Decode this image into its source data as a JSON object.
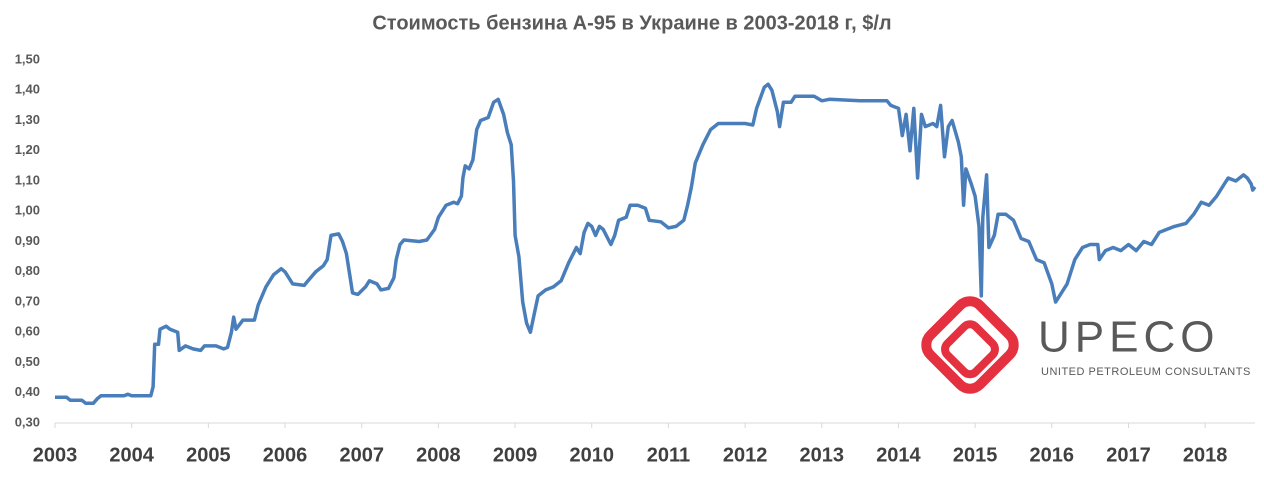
{
  "chart_data": {
    "type": "line",
    "title": "Стоимость бензина А-95 в Украине в 2003-2018 г, $/л",
    "color": "#4a7ebb",
    "x": [
      2003.0,
      2003.15,
      2003.2,
      2003.35,
      2003.4,
      2003.5,
      2003.55,
      2003.6,
      2003.9,
      2003.95,
      2004.0,
      2004.25,
      2004.28,
      2004.3,
      2004.35,
      2004.37,
      2004.45,
      2004.5,
      2004.6,
      2004.62,
      2004.7,
      2004.8,
      2004.9,
      2004.95,
      2005.1,
      2005.2,
      2005.25,
      2005.3,
      2005.33,
      2005.36,
      2005.42,
      2005.45,
      2005.6,
      2005.65,
      2005.75,
      2005.85,
      2005.95,
      2006.0,
      2006.1,
      2006.25,
      2006.3,
      2006.4,
      2006.5,
      2006.55,
      2006.6,
      2006.7,
      2006.75,
      2006.8,
      2006.85,
      2006.88,
      2006.95,
      2007.05,
      2007.1,
      2007.2,
      2007.25,
      2007.35,
      2007.42,
      2007.45,
      2007.5,
      2007.55,
      2007.75,
      2007.85,
      2007.95,
      2008.0,
      2008.1,
      2008.2,
      2008.25,
      2008.3,
      2008.32,
      2008.35,
      2008.4,
      2008.45,
      2008.5,
      2008.55,
      2008.65,
      2008.72,
      2008.78,
      2008.85,
      2008.9,
      2008.95,
      2008.98,
      2009.0,
      2009.05,
      2009.1,
      2009.15,
      2009.2,
      2009.25,
      2009.3,
      2009.4,
      2009.5,
      2009.6,
      2009.7,
      2009.8,
      2009.85,
      2009.9,
      2009.95,
      2010.0,
      2010.05,
      2010.1,
      2010.15,
      2010.25,
      2010.3,
      2010.35,
      2010.45,
      2010.5,
      2010.6,
      2010.7,
      2010.75,
      2010.9,
      2011.0,
      2011.1,
      2011.2,
      2011.25,
      2011.3,
      2011.35,
      2011.45,
      2011.55,
      2011.65,
      2011.8,
      2012.0,
      2012.1,
      2012.15,
      2012.25,
      2012.3,
      2012.35,
      2012.42,
      2012.45,
      2012.5,
      2012.6,
      2012.65,
      2012.9,
      2013.0,
      2013.1,
      2013.5,
      2013.85,
      2013.9,
      2014.0,
      2014.05,
      2014.1,
      2014.15,
      2014.2,
      2014.25,
      2014.3,
      2014.35,
      2014.45,
      2014.5,
      2014.55,
      2014.6,
      2014.65,
      2014.7,
      2014.78,
      2014.82,
      2014.85,
      2014.88,
      2014.95,
      2015.0,
      2015.05,
      2015.08,
      2015.1,
      2015.15,
      2015.18,
      2015.25,
      2015.3,
      2015.4,
      2015.5,
      2015.6,
      2015.7,
      2015.8,
      2015.9,
      2016.0,
      2016.05,
      2016.1,
      2016.2,
      2016.3,
      2016.4,
      2016.5,
      2016.6,
      2016.62,
      2016.7,
      2016.8,
      2016.9,
      2017.0,
      2017.1,
      2017.2,
      2017.3,
      2017.4,
      2017.5,
      2017.6,
      2017.75,
      2017.85,
      2017.95,
      2018.05,
      2018.15,
      2018.25,
      2018.3,
      2018.4,
      2018.5,
      2018.55,
      2018.6,
      2018.62,
      2018.65
    ],
    "values": [
      0.385,
      0.385,
      0.375,
      0.375,
      0.365,
      0.365,
      0.38,
      0.39,
      0.39,
      0.395,
      0.39,
      0.39,
      0.42,
      0.56,
      0.56,
      0.61,
      0.62,
      0.61,
      0.6,
      0.54,
      0.555,
      0.545,
      0.54,
      0.555,
      0.555,
      0.545,
      0.55,
      0.6,
      0.65,
      0.61,
      0.63,
      0.64,
      0.64,
      0.69,
      0.75,
      0.79,
      0.81,
      0.8,
      0.76,
      0.755,
      0.77,
      0.8,
      0.82,
      0.84,
      0.92,
      0.925,
      0.9,
      0.86,
      0.78,
      0.73,
      0.725,
      0.75,
      0.77,
      0.76,
      0.74,
      0.745,
      0.78,
      0.84,
      0.89,
      0.905,
      0.9,
      0.905,
      0.94,
      0.98,
      1.02,
      1.03,
      1.025,
      1.05,
      1.11,
      1.15,
      1.14,
      1.17,
      1.27,
      1.3,
      1.31,
      1.36,
      1.37,
      1.32,
      1.26,
      1.22,
      1.1,
      0.92,
      0.85,
      0.7,
      0.63,
      0.6,
      0.66,
      0.72,
      0.74,
      0.75,
      0.77,
      0.83,
      0.88,
      0.86,
      0.93,
      0.96,
      0.95,
      0.92,
      0.95,
      0.94,
      0.89,
      0.92,
      0.97,
      0.98,
      1.02,
      1.02,
      1.01,
      0.97,
      0.965,
      0.945,
      0.95,
      0.97,
      1.02,
      1.08,
      1.16,
      1.22,
      1.27,
      1.29,
      1.29,
      1.29,
      1.285,
      1.34,
      1.41,
      1.42,
      1.4,
      1.33,
      1.28,
      1.36,
      1.36,
      1.38,
      1.38,
      1.365,
      1.37,
      1.365,
      1.365,
      1.35,
      1.34,
      1.25,
      1.32,
      1.2,
      1.34,
      1.11,
      1.32,
      1.28,
      1.29,
      1.28,
      1.35,
      1.18,
      1.28,
      1.3,
      1.23,
      1.18,
      1.02,
      1.14,
      1.09,
      1.05,
      0.95,
      0.72,
      0.98,
      1.12,
      0.88,
      0.92,
      0.99,
      0.99,
      0.97,
      0.91,
      0.9,
      0.84,
      0.83,
      0.76,
      0.7,
      0.72,
      0.76,
      0.84,
      0.88,
      0.89,
      0.89,
      0.84,
      0.87,
      0.88,
      0.87,
      0.89,
      0.87,
      0.9,
      0.89,
      0.93,
      0.94,
      0.95,
      0.96,
      0.99,
      1.03,
      1.02,
      1.05,
      1.09,
      1.11,
      1.1,
      1.12,
      1.11,
      1.09,
      1.07,
      1.08
    ],
    "xlim": [
      2003,
      2018.65
    ],
    "xticks": [
      2003,
      2004,
      2005,
      2006,
      2007,
      2008,
      2009,
      2010,
      2011,
      2012,
      2013,
      2014,
      2015,
      2016,
      2017,
      2018
    ],
    "ylim": [
      0.3,
      1.5
    ],
    "yticks": [
      {
        "value": 0.3,
        "label": "0,30"
      },
      {
        "value": 0.4,
        "label": "0,40"
      },
      {
        "value": 0.5,
        "label": "0,50"
      },
      {
        "value": 0.6,
        "label": "0,60"
      },
      {
        "value": 0.7,
        "label": "0,70"
      },
      {
        "value": 0.8,
        "label": "0,80"
      },
      {
        "value": 0.9,
        "label": "0,90"
      },
      {
        "value": 1.0,
        "label": "1,00"
      },
      {
        "value": 1.1,
        "label": "1,10"
      },
      {
        "value": 1.2,
        "label": "1,20"
      },
      {
        "value": 1.3,
        "label": "1,30"
      },
      {
        "value": 1.4,
        "label": "1,40"
      },
      {
        "value": 1.5,
        "label": "1,50"
      }
    ],
    "grid": false
  },
  "logo": {
    "name": "UPECO",
    "tagline": "UNITED PETROLEUM CONSULTANTS"
  }
}
